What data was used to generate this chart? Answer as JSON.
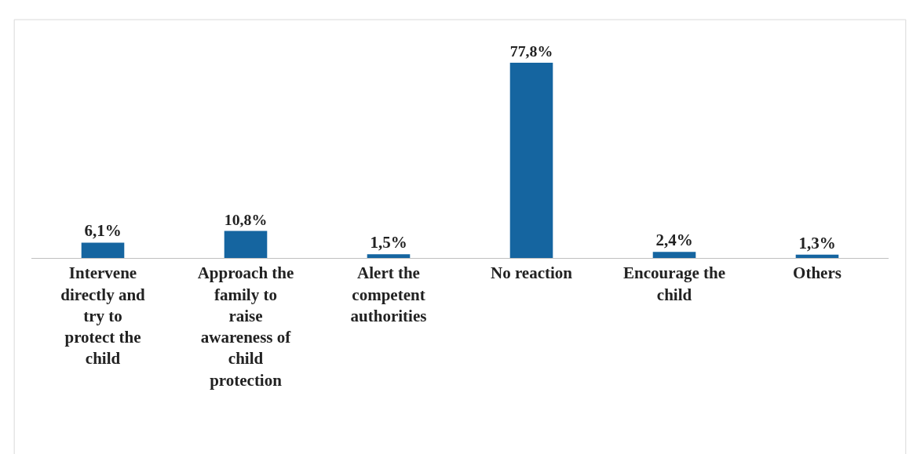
{
  "chart_data": {
    "type": "bar",
    "categories": [
      "Intervene directly and try to protect the child",
      "Approach the family to raise awareness of child protection",
      "Alert the competent authorities",
      "No reaction",
      "Encourage the child",
      "Others"
    ],
    "values": [
      6.1,
      10.8,
      1.5,
      77.8,
      2.4,
      1.3
    ],
    "value_labels": [
      "6,1%",
      "10,8%",
      "1,5%",
      "77,8%",
      "2,4%",
      "1,3%"
    ],
    "color": "#1565a0"
  }
}
